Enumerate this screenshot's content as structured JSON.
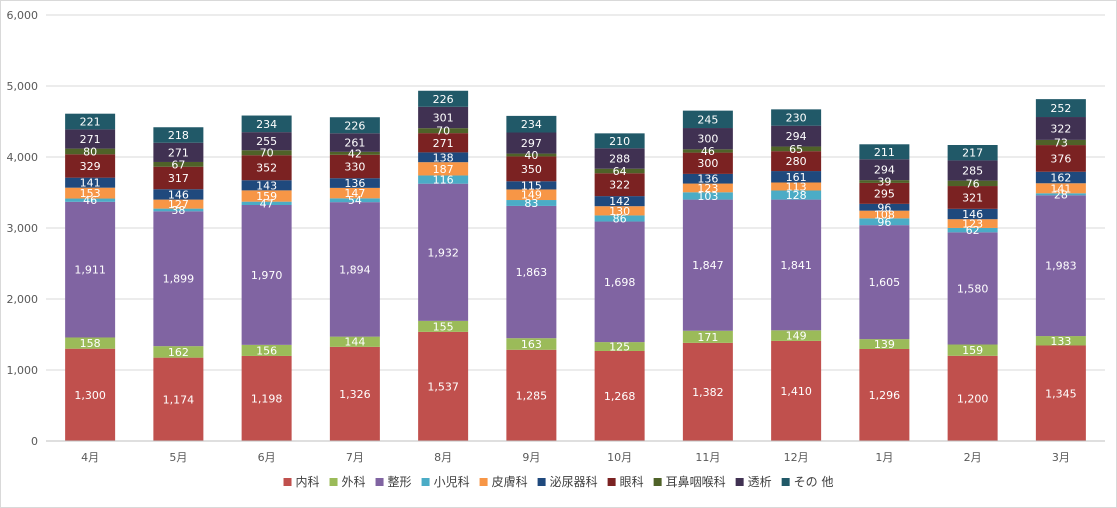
{
  "chart_data": {
    "type": "bar",
    "stacked": true,
    "title": "",
    "xlabel": "",
    "ylabel": "",
    "ylim": [
      0,
      6000
    ],
    "yticks": [
      "0",
      "1,000",
      "2,000",
      "3,000",
      "4,000",
      "5,000",
      "6,000"
    ],
    "grid": true,
    "legend_position": "bottom",
    "categories": [
      "4月",
      "5月",
      "6月",
      "7月",
      "8月",
      "9月",
      "10月",
      "11月",
      "12月",
      "1月",
      "2月",
      "3月"
    ],
    "series": [
      {
        "name": "内科",
        "color": "#c0504d",
        "values": [
          1300,
          1174,
          1198,
          1326,
          1537,
          1285,
          1268,
          1382,
          1410,
          1296,
          1200,
          1345
        ],
        "labels": [
          "1,300",
          "1,174",
          "1,198",
          "1,326",
          "1,537",
          "1,285",
          "1,268",
          "1,382",
          "1,410",
          "1,296",
          "1,200",
          "1,345"
        ]
      },
      {
        "name": "外科",
        "color": "#9bbb59",
        "values": [
          158,
          162,
          156,
          144,
          155,
          163,
          125,
          171,
          149,
          139,
          159,
          133
        ],
        "labels": [
          "158",
          "162",
          "156",
          "144",
          "155",
          "163",
          "125",
          "171",
          "149",
          "139",
          "159",
          "133"
        ]
      },
      {
        "name": "整形",
        "color": "#8064a2",
        "values": [
          1911,
          1899,
          1970,
          1894,
          1932,
          1863,
          1698,
          1847,
          1841,
          1605,
          1580,
          1983
        ],
        "labels": [
          "1,911",
          "1,899",
          "1,970",
          "1,894",
          "1,932",
          "1,863",
          "1,698",
          "1,847",
          "1,841",
          "1,605",
          "1,580",
          "1,983"
        ]
      },
      {
        "name": "小児科",
        "color": "#4bacc6",
        "values": [
          46,
          38,
          47,
          54,
          116,
          83,
          86,
          103,
          128,
          96,
          62,
          28
        ],
        "labels": [
          "46",
          "38",
          "47",
          "54",
          "116",
          "83",
          "86",
          "103",
          "128",
          "96",
          "62",
          "28"
        ]
      },
      {
        "name": "皮膚科",
        "color": "#f79646",
        "values": [
          153,
          127,
          159,
          147,
          187,
          149,
          130,
          123,
          113,
          108,
          123,
          141
        ],
        "labels": [
          "153",
          "127",
          "159",
          "147",
          "187",
          "149",
          "130",
          "123",
          "113",
          "108",
          "123",
          "141"
        ]
      },
      {
        "name": "泌尿器科",
        "color": "#1f497d",
        "values": [
          141,
          146,
          143,
          136,
          138,
          115,
          142,
          136,
          161,
          96,
          146,
          162
        ],
        "labels": [
          "141",
          "146",
          "143",
          "136",
          "138",
          "115",
          "142",
          "136",
          "161",
          "96",
          "146",
          "162"
        ]
      },
      {
        "name": "眼科",
        "color": "#7b2222",
        "values": [
          329,
          317,
          352,
          330,
          271,
          350,
          322,
          300,
          280,
          295,
          321,
          376
        ],
        "labels": [
          "329",
          "317",
          "352",
          "330",
          "271",
          "350",
          "322",
          "300",
          "280",
          "295",
          "321",
          "376"
        ]
      },
      {
        "name": "耳鼻咽喉科",
        "color": "#4f6228",
        "values": [
          80,
          67,
          70,
          42,
          70,
          40,
          64,
          46,
          65,
          39,
          76,
          73
        ],
        "labels": [
          "80",
          "67",
          "70",
          "42",
          "70",
          "40",
          "64",
          "46",
          "65",
          "39",
          "76",
          "73"
        ]
      },
      {
        "name": "透析",
        "color": "#403152",
        "values": [
          271,
          271,
          255,
          261,
          301,
          297,
          288,
          300,
          294,
          294,
          285,
          322
        ],
        "labels": [
          "271",
          "271",
          "255",
          "261",
          "301",
          "297",
          "288",
          "300",
          "294",
          "294",
          "285",
          "322"
        ]
      },
      {
        "name": "その 他",
        "color": "#215968",
        "values": [
          221,
          218,
          234,
          226,
          226,
          234,
          210,
          245,
          230,
          211,
          217,
          252
        ],
        "labels": [
          "221",
          "218",
          "234",
          "226",
          "226",
          "234",
          "210",
          "245",
          "230",
          "211",
          "217",
          "252"
        ]
      }
    ]
  }
}
